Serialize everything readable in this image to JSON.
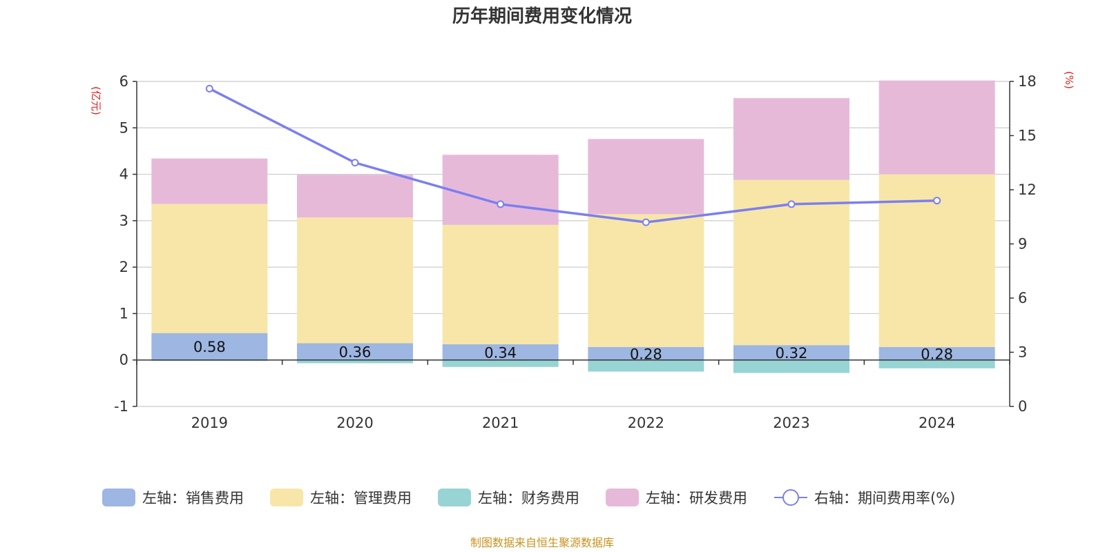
{
  "chart_data": {
    "type": "bar",
    "title": "历年期间费用变化情况",
    "source": "制图数据来自恒生聚源数据库",
    "categories": [
      "2019",
      "2020",
      "2021",
      "2022",
      "2023",
      "2024"
    ],
    "left_axis": {
      "unit": "(亿元)",
      "ylim": [
        -1,
        6
      ],
      "ticks": [
        "-1",
        "0",
        "1",
        "2",
        "3",
        "4",
        "5",
        "6"
      ]
    },
    "right_axis": {
      "unit": "(%)",
      "ylim": [
        0,
        18
      ],
      "ticks": [
        "0",
        "3",
        "6",
        "9",
        "12",
        "15",
        "18"
      ]
    },
    "grid": true,
    "legend_position": "bottom",
    "series": [
      {
        "name": "左轴：销售费用",
        "type": "bar",
        "stack": "left",
        "color": "#9db6e2",
        "values": [
          0.58,
          0.36,
          0.34,
          0.28,
          0.32,
          0.28
        ],
        "labels": [
          "0.58",
          "0.36",
          "0.34",
          "0.28",
          "0.32",
          "0.28"
        ]
      },
      {
        "name": "左轴：管理费用",
        "type": "bar",
        "stack": "left",
        "color": "#f7e6a8",
        "values": [
          2.78,
          2.71,
          2.57,
          2.86,
          3.56,
          3.72
        ]
      },
      {
        "name": "左轴：财务费用",
        "type": "bar",
        "stack": "left",
        "color": "#98d4d4",
        "values": [
          -0.02,
          -0.07,
          -0.15,
          -0.25,
          -0.28,
          -0.18
        ]
      },
      {
        "name": "左轴：研发费用",
        "type": "bar",
        "stack": "left",
        "color": "#e7b9d9",
        "values": [
          0.98,
          0.92,
          1.51,
          1.62,
          1.76,
          2.02
        ]
      },
      {
        "name": "右轴：期间费用率(%)",
        "type": "line",
        "axis": "right",
        "color": "#7b7ff0",
        "values": [
          17.6,
          13.5,
          11.2,
          10.2,
          11.2,
          11.4
        ]
      }
    ]
  }
}
